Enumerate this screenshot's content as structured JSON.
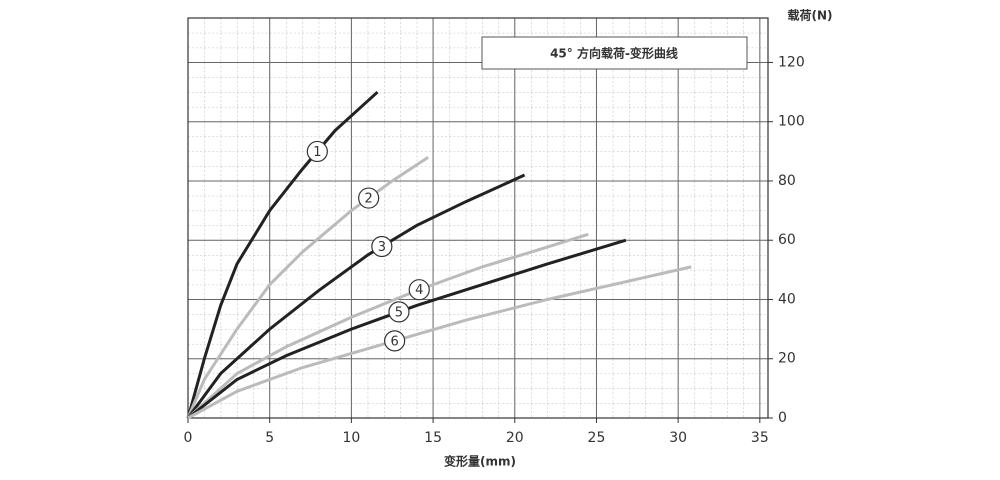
{
  "chart_data": {
    "type": "line",
    "title": "45° 方向载荷-变形曲线",
    "x_label": "变形量(mm)",
    "y_label": "载荷(N)",
    "xlim": [
      0,
      35.5
    ],
    "ylim": [
      0,
      135
    ],
    "xticks": [
      0,
      5,
      10,
      15,
      20,
      25,
      30,
      35
    ],
    "yticks": [
      0,
      20,
      40,
      60,
      80,
      100,
      120
    ],
    "grid": true,
    "series": [
      {
        "name": "1",
        "color": "#222222",
        "x": [
          0,
          1,
          2,
          3,
          5,
          7,
          9,
          11.6
        ],
        "values": [
          0,
          20,
          38,
          52,
          70,
          84,
          97,
          110
        ]
      },
      {
        "name": "2",
        "color": "#bbbbbb",
        "x": [
          0,
          1,
          3,
          5,
          7,
          10,
          12.5,
          14.7
        ],
        "values": [
          0,
          13,
          30,
          45,
          56,
          70,
          80,
          88
        ]
      },
      {
        "name": "3",
        "color": "#222222",
        "x": [
          0,
          2,
          5,
          8,
          11,
          14,
          17,
          20.6
        ],
        "values": [
          0,
          15,
          30,
          43,
          55,
          65,
          73,
          82
        ]
      },
      {
        "name": "4",
        "color": "#bbbbbb",
        "x": [
          0,
          3,
          6,
          10,
          14,
          18,
          21,
          24.5
        ],
        "values": [
          0,
          15,
          24,
          34,
          43,
          51,
          56,
          62
        ]
      },
      {
        "name": "5",
        "color": "#222222",
        "x": [
          0,
          3,
          6,
          10,
          14,
          18,
          22,
          26.8
        ],
        "values": [
          0,
          13,
          21,
          30,
          38,
          45,
          52,
          60
        ]
      },
      {
        "name": "6",
        "color": "#bbbbbb",
        "x": [
          0,
          3,
          7,
          12,
          17,
          22,
          26,
          30.8
        ],
        "values": [
          0,
          9,
          17,
          25,
          33,
          40,
          45,
          51
        ]
      }
    ]
  }
}
